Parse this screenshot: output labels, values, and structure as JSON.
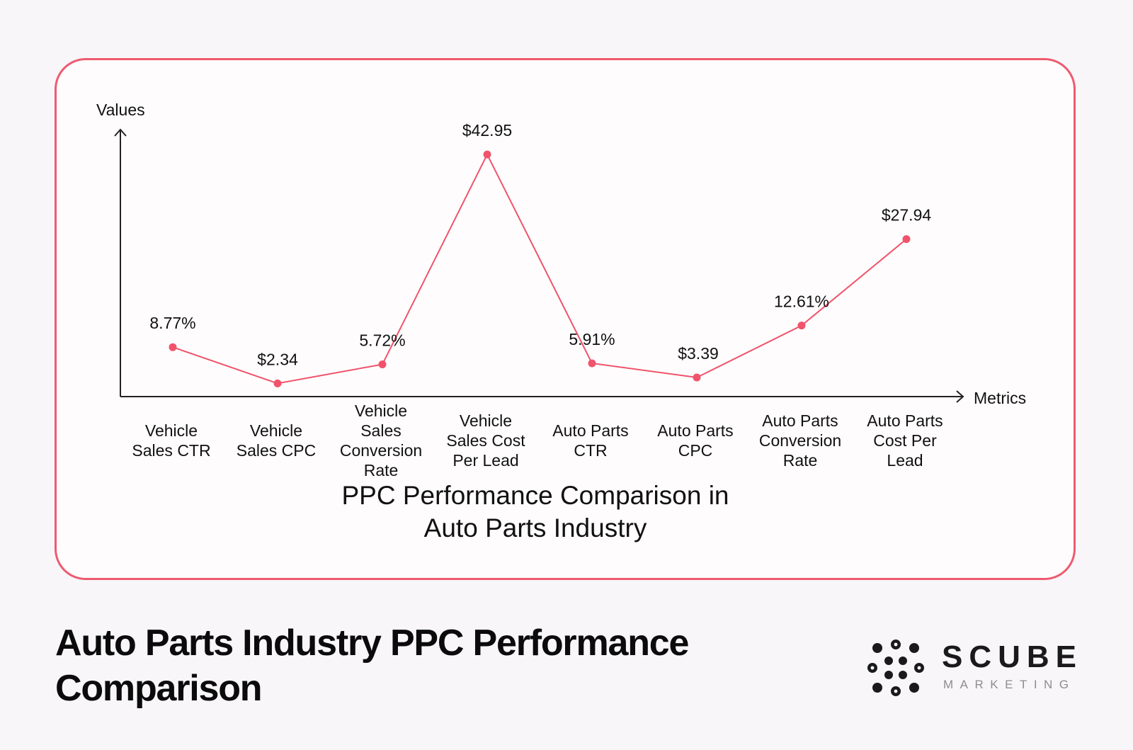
{
  "chart_data": {
    "type": "line",
    "title": "PPC Performance Comparison in Auto Parts Industry",
    "title_lines": [
      "PPC Performance Comparison in",
      "Auto Parts Industry"
    ],
    "xlabel": "Metrics",
    "ylabel": "Values",
    "ylim": [
      0,
      50
    ],
    "grid": false,
    "categories": [
      "Vehicle Sales CTR",
      "Vehicle Sales CPC",
      "Vehicle Sales Conversion Rate",
      "Vehicle Sales Cost Per Lead",
      "Auto Parts CTR",
      "Auto Parts CPC",
      "Auto Parts Conversion Rate",
      "Auto Parts Cost Per Lead"
    ],
    "category_lines": [
      [
        "Vehicle",
        "Sales CTR"
      ],
      [
        "Vehicle",
        "Sales CPC"
      ],
      [
        "Vehicle",
        "Sales",
        "Conversion",
        "Rate"
      ],
      [
        "Vehicle",
        "Sales Cost",
        "Per Lead"
      ],
      [
        "Auto Parts",
        "CTR"
      ],
      [
        "Auto Parts",
        "CPC"
      ],
      [
        "Auto Parts",
        "Conversion",
        "Rate"
      ],
      [
        "Auto Parts",
        "Cost Per",
        "Lead"
      ]
    ],
    "values": [
      8.77,
      2.34,
      5.72,
      42.95,
      5.91,
      3.39,
      12.61,
      27.94
    ],
    "data_labels": [
      "8.77%",
      "$2.34",
      "5.72%",
      "$42.95",
      "5.91%",
      "$3.39",
      "12.61%",
      "$27.94"
    ],
    "color": "#f0536b"
  },
  "page": {
    "heading": "Auto Parts Industry PPC Performance Comparison"
  },
  "brand": {
    "name": "SCUBE",
    "tagline": "MARKETING"
  },
  "colors": {
    "accent": "#ee5a6f",
    "line": "#f0536b",
    "background": "#f8f6f9"
  }
}
